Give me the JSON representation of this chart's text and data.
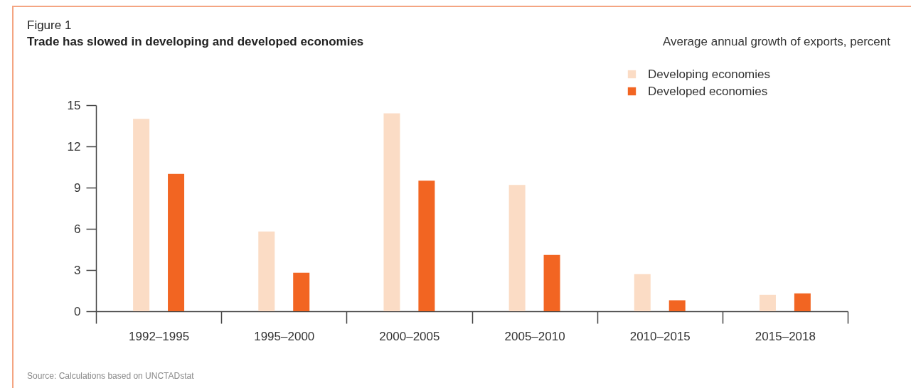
{
  "chart_data": {
    "type": "bar",
    "title": "Trade has slowed in developing and developed economies",
    "ylabel": "Average annual growth of exports, percent",
    "annotations": [
      "Figure 1",
      "Source: Calculations based on UNCTADstat"
    ],
    "categories": [
      "1992–1995",
      "1995–2000",
      "2000–2005",
      "2005–2010",
      "2010–2015",
      "2015–2018"
    ],
    "series": [
      {
        "name": "Developing economies",
        "color": "#fbdcc5",
        "values": [
          14.0,
          5.8,
          14.4,
          9.2,
          2.7,
          1.2
        ]
      },
      {
        "name": "Developed economies",
        "color": "#f26522",
        "values": [
          10.0,
          2.8,
          9.5,
          4.1,
          0.8,
          1.3
        ]
      }
    ],
    "ylim": [
      0,
      15
    ],
    "yticks": [
      0,
      3,
      6,
      9,
      12,
      15
    ],
    "legend": "top right"
  }
}
